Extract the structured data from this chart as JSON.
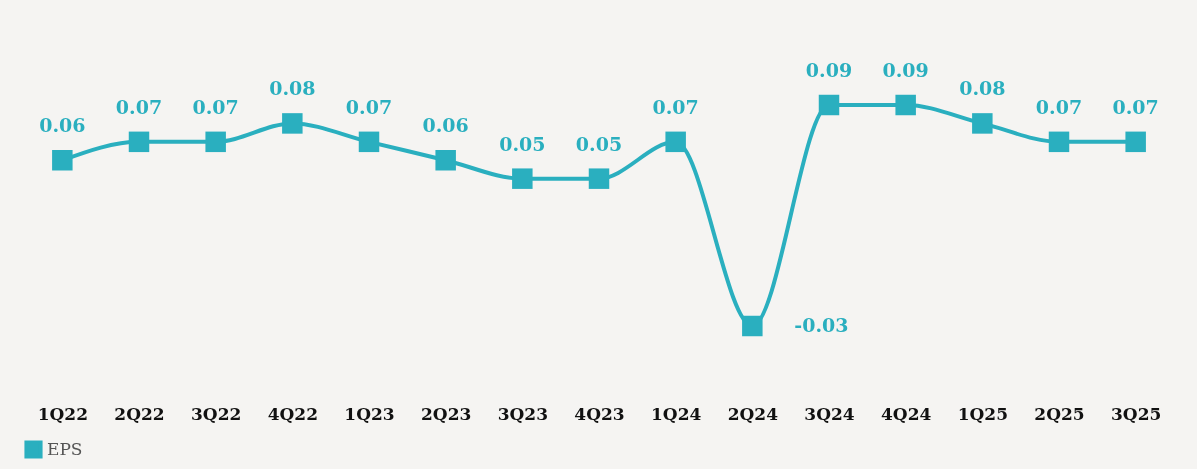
{
  "chart_data": {
    "type": "line",
    "categories": [
      "1Q22",
      "2Q22",
      "3Q22",
      "4Q22",
      "1Q23",
      "2Q23",
      "3Q23",
      "4Q23",
      "1Q24",
      "2Q24",
      "3Q24",
      "4Q24",
      "1Q25",
      "2Q25",
      "3Q25"
    ],
    "series": [
      {
        "name": "EPS",
        "color": "#2aafbf",
        "values": [
          0.06,
          0.07,
          0.07,
          0.08,
          0.07,
          0.06,
          0.05,
          0.05,
          0.07,
          -0.03,
          0.09,
          0.09,
          0.08,
          0.07,
          0.07
        ]
      }
    ],
    "marker": "square",
    "data_labels": true,
    "legend": "bottom",
    "grid": false
  }
}
